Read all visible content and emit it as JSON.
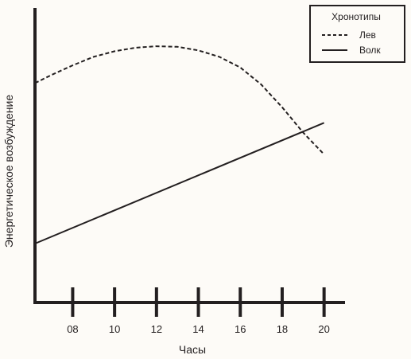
{
  "chart_data": {
    "type": "line",
    "title": "",
    "xlabel": "Часы",
    "ylabel": "Энергетическое возбуждение",
    "xlim": [
      6.2,
      21
    ],
    "ylim": [
      0,
      100
    ],
    "x_ticks": [
      8,
      10,
      12,
      14,
      16,
      18,
      20
    ],
    "x_tick_labels": [
      "08",
      "10",
      "12",
      "14",
      "16",
      "18",
      "20"
    ],
    "grid": false,
    "legend": {
      "title": "Хронотипы",
      "placement": "top-right"
    },
    "series": [
      {
        "name": "Лев",
        "style": "dashed",
        "color": "#231f20",
        "x": [
          6.2,
          7,
          8,
          9,
          10,
          11,
          12,
          13,
          14,
          15,
          16,
          17,
          18,
          19,
          20
        ],
        "y": [
          74.5,
          77.3,
          80.5,
          83.4,
          85.3,
          86.5,
          87.0,
          86.8,
          85.6,
          83.4,
          79.8,
          74.0,
          66.3,
          57.7,
          50.3
        ]
      },
      {
        "name": "Волк",
        "style": "solid",
        "color": "#231f20",
        "x": [
          6.2,
          20
        ],
        "y": [
          20,
          61
        ]
      }
    ]
  }
}
